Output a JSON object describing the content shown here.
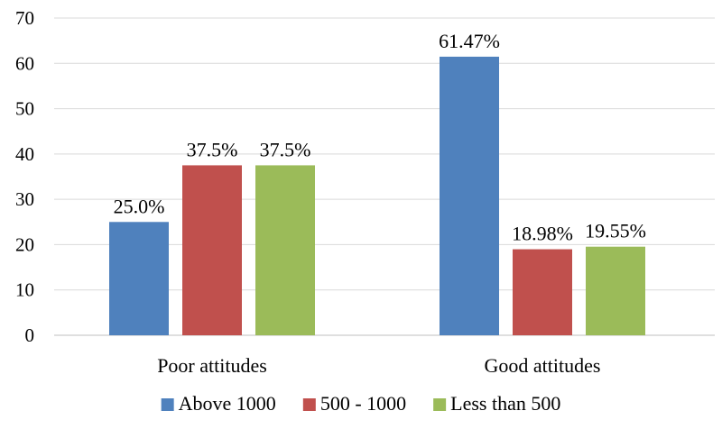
{
  "chart_data": {
    "type": "bar",
    "title": "",
    "xlabel": "",
    "ylabel": "",
    "ylim": [
      0,
      70
    ],
    "yticks": [
      0,
      10,
      20,
      30,
      40,
      50,
      60,
      70
    ],
    "grid": true,
    "legend_position": "bottom",
    "categories": [
      "Poor attitudes",
      "Good attitudes"
    ],
    "series": [
      {
        "name": "Above 1000",
        "color": "#4f81bd",
        "values": [
          25.0,
          61.47
        ],
        "labels": [
          "25.0%",
          "61.47%"
        ]
      },
      {
        "name": "500 - 1000",
        "color": "#c0504d",
        "values": [
          37.5,
          18.98
        ],
        "labels": [
          "37.5%",
          "18.98%"
        ]
      },
      {
        "name": "Less than 500",
        "color": "#9bbb59",
        "values": [
          37.5,
          19.55
        ],
        "labels": [
          "37.5%",
          "19.55%"
        ]
      }
    ]
  }
}
